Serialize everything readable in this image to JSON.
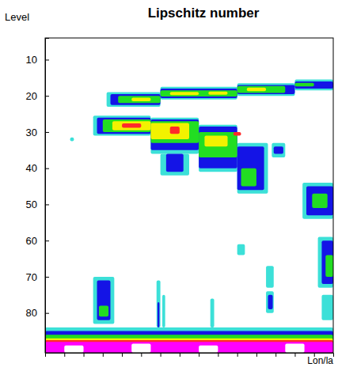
{
  "chart_data": {
    "type": "heatmap",
    "title": "Lipschitz number",
    "x_label": "Lon/la",
    "y_label": "Level",
    "xlim": [
      0,
      15
    ],
    "xticks": [
      1,
      2,
      3,
      4,
      5,
      6,
      7,
      8,
      9,
      10,
      11,
      12,
      13,
      14
    ],
    "ylim": [
      91,
      4
    ],
    "yticks": [
      10,
      20,
      30,
      40,
      50,
      60,
      70,
      80
    ],
    "tick_labels": "y",
    "color_levels": [
      1,
      2,
      3,
      4,
      5,
      6,
      7
    ],
    "colors": [
      "#3ce0d8",
      "#1414e6",
      "#22dd22",
      "#f2f200",
      "#ff2a2a",
      "#ff00ff",
      "#ffffff"
    ],
    "cells": [
      [
        3.2,
        6,
        19,
        23,
        1
      ],
      [
        6,
        10,
        17.5,
        21,
        1
      ],
      [
        10,
        13,
        16.5,
        20,
        1
      ],
      [
        13,
        15,
        15.5,
        18.5,
        1
      ],
      [
        2.5,
        5.5,
        25.5,
        31,
        1
      ],
      [
        5.5,
        8,
        26,
        36,
        1
      ],
      [
        8,
        10,
        28,
        41,
        1
      ],
      [
        10,
        11.6,
        33,
        47,
        1
      ],
      [
        6,
        7.5,
        36,
        42,
        1
      ],
      [
        11.8,
        12.5,
        33,
        37,
        1
      ],
      [
        13.4,
        15,
        44,
        54,
        1
      ],
      [
        14.2,
        15,
        59,
        73,
        1
      ],
      [
        10,
        10.4,
        61,
        64,
        1
      ],
      [
        11.5,
        11.9,
        67,
        73,
        1
      ],
      [
        2.5,
        3.6,
        70,
        83,
        1
      ],
      [
        1.3,
        1.5,
        31.5,
        32.5,
        1
      ],
      [
        14.4,
        15,
        75,
        82,
        1
      ],
      [
        5.8,
        6,
        71,
        84,
        1
      ],
      [
        6.1,
        6.25,
        75,
        84,
        1
      ],
      [
        8.6,
        8.8,
        76,
        84,
        1
      ],
      [
        11.5,
        11.9,
        74,
        80,
        1
      ],
      [
        0,
        15,
        84,
        91,
        1
      ],
      [
        3.4,
        6,
        19.5,
        22.5,
        2
      ],
      [
        6,
        10,
        18,
        20.6,
        2
      ],
      [
        10,
        13,
        17,
        19.5,
        2
      ],
      [
        13,
        15,
        16,
        18,
        2
      ],
      [
        2.7,
        5.5,
        26,
        30.5,
        2
      ],
      [
        5.5,
        8,
        26.5,
        35,
        2
      ],
      [
        8,
        10,
        28.5,
        40,
        2
      ],
      [
        10,
        11.4,
        34,
        46,
        2
      ],
      [
        6.3,
        7.2,
        36,
        41,
        2
      ],
      [
        11.9,
        12.4,
        34,
        36,
        2
      ],
      [
        13.6,
        15,
        45,
        53,
        2
      ],
      [
        14.4,
        15,
        60,
        72,
        2
      ],
      [
        2.7,
        3.4,
        71,
        82,
        2
      ],
      [
        11.6,
        11.85,
        75,
        79,
        2
      ],
      [
        5.85,
        5.95,
        77,
        84,
        2
      ],
      [
        0,
        15,
        85,
        91,
        2
      ],
      [
        3.8,
        6,
        20,
        22,
        3
      ],
      [
        6,
        10,
        18.5,
        20.2,
        3
      ],
      [
        10,
        12.5,
        17.3,
        19.2,
        3
      ],
      [
        13,
        14,
        16.4,
        17.4,
        3
      ],
      [
        3,
        5.5,
        26.5,
        30,
        3
      ],
      [
        5.5,
        8,
        27,
        33,
        3
      ],
      [
        8,
        10,
        30,
        37,
        3
      ],
      [
        10.2,
        11,
        40,
        45,
        3
      ],
      [
        13.9,
        14.7,
        47,
        51,
        3
      ],
      [
        14.6,
        15,
        64,
        70,
        3
      ],
      [
        2.8,
        3.3,
        78,
        81,
        3
      ],
      [
        0,
        15,
        86,
        91,
        3
      ],
      [
        4.5,
        5.5,
        20.5,
        21.5,
        4
      ],
      [
        6.5,
        8,
        18.9,
        19.8,
        4
      ],
      [
        8.5,
        9.5,
        18.8,
        19.7,
        4
      ],
      [
        10.5,
        11.5,
        17.7,
        18.7,
        4
      ],
      [
        3.5,
        5.5,
        27,
        29.5,
        4
      ],
      [
        5.5,
        7.5,
        27.5,
        32,
        4
      ],
      [
        8.3,
        9.5,
        31,
        34,
        4
      ],
      [
        0,
        15,
        87,
        91,
        4
      ],
      [
        4,
        5,
        27.6,
        28.8,
        5
      ],
      [
        6.5,
        7,
        28.5,
        30.5,
        5
      ],
      [
        9.8,
        10.2,
        30,
        31,
        5
      ],
      [
        0,
        15,
        87.5,
        91,
        5
      ],
      [
        0,
        15,
        88,
        91,
        6
      ],
      [
        1,
        2,
        89,
        91,
        7
      ],
      [
        4.5,
        5.5,
        88.5,
        91,
        7
      ],
      [
        8,
        9,
        89,
        91,
        7
      ],
      [
        12.5,
        13.5,
        88.5,
        91,
        7
      ]
    ]
  }
}
